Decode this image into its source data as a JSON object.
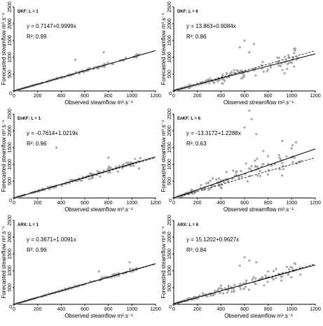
{
  "chart_data": [
    {
      "type": "scatter",
      "title": "DKF: L = 1",
      "xlabel": "Observed steamflow m³.s⁻¹",
      "ylabel": "Forecasted steamflow m³.s⁻¹",
      "xlim": [
        0,
        1200
      ],
      "ylim": [
        0,
        2500
      ],
      "xticks": [
        0,
        200,
        400,
        600,
        800,
        1000,
        1200
      ],
      "yticks": [
        0,
        500,
        1000,
        1500,
        2000,
        2500
      ],
      "equation": "y = 0.7147+0.9999x",
      "r2": "R²: 0.99",
      "fit": {
        "intercept": 0.7147,
        "slope": 0.9999
      },
      "spread": 0.06,
      "outliers": [
        [
          520,
          930
        ],
        [
          760,
          1150
        ]
      ]
    },
    {
      "type": "scatter",
      "title": "DKF: L = 6",
      "xlabel": "Observed streamflow m³.s⁻¹",
      "ylabel": "Forecasted steamflow m³.s⁻¹",
      "xlim": [
        0,
        1200
      ],
      "ylim": [
        0,
        2500
      ],
      "xticks": [
        0,
        200,
        400,
        600,
        800,
        1000,
        1200
      ],
      "yticks": [
        0,
        500,
        1000,
        1500,
        2000,
        2500
      ],
      "equation": "y = 13.863+0.9084x",
      "r2": "R²: 0.86",
      "fit": {
        "intercept": 13.863,
        "slope": 0.9084
      },
      "spread": 0.32,
      "outliers": [
        [
          600,
          1500
        ],
        [
          680,
          1400
        ],
        [
          560,
          1300
        ],
        [
          1020,
          1250
        ],
        [
          640,
          1150
        ]
      ]
    },
    {
      "type": "scatter",
      "title": "EnKF: L = 1",
      "xlabel": "Observed steamflow m³.s⁻¹",
      "ylabel": "Forecasted steamflow m³.s⁻¹",
      "xlim": [
        0,
        1200
      ],
      "ylim": [
        0,
        2500
      ],
      "xticks": [
        0,
        200,
        400,
        600,
        800,
        1000,
        1200
      ],
      "yticks": [
        0,
        500,
        1000,
        1500,
        2000,
        2500
      ],
      "equation": "y = -0.7614+1.0219x",
      "r2": "R²: 0.96",
      "fit": {
        "intercept": -0.7614,
        "slope": 1.0219
      },
      "spread": 0.12,
      "outliers": [
        [
          360,
          1500
        ],
        [
          800,
          1200
        ],
        [
          1060,
          880
        ]
      ]
    },
    {
      "type": "scatter",
      "title": "EnKF: L = 6",
      "xlabel": "Observed streamflow m³.s⁻¹",
      "ylabel": "Forecasted steamflow m³.s⁻¹",
      "xlim": [
        0,
        1200
      ],
      "ylim": [
        0,
        2500
      ],
      "xticks": [
        0,
        200,
        400,
        600,
        800,
        1000,
        1200
      ],
      "yticks": [
        0,
        500,
        1000,
        1500,
        2000,
        2500
      ],
      "equation": "y = -13.3172+1.2288x",
      "r2": "R²: 0.63",
      "fit": {
        "intercept": -13.3172,
        "slope": 1.2288
      },
      "spread": 0.45,
      "outliers": [
        [
          640,
          2600
        ],
        [
          660,
          2350
        ],
        [
          600,
          2100
        ],
        [
          760,
          1400
        ],
        [
          920,
          1700
        ],
        [
          1080,
          1100
        ],
        [
          700,
          1900
        ]
      ]
    },
    {
      "type": "scatter",
      "title": "ARX: L = 1",
      "xlabel": "Observed steamflow m³.s⁻¹",
      "ylabel": "Forecasted steamflow m³.s⁻¹",
      "xlim": [
        0,
        1200
      ],
      "ylim": [
        0,
        2500
      ],
      "xticks": [
        0,
        200,
        400,
        600,
        800,
        1000,
        1200
      ],
      "yticks": [
        0,
        500,
        1000,
        1500,
        2000,
        2500
      ],
      "equation": "y = 0.3671+1.0091x",
      "r2": "R²: 0.99",
      "fit": {
        "intercept": 0.3671,
        "slope": 1.0091
      },
      "spread": 0.06,
      "outliers": [
        [
          720,
          980
        ],
        [
          980,
          1250
        ]
      ]
    },
    {
      "type": "scatter",
      "title": "ARX: L = 6",
      "xlabel": "Observed steamflow m³.s⁻¹",
      "ylabel": "Forecasted steamflow m³.s⁻¹",
      "xlim": [
        0,
        1200
      ],
      "ylim": [
        0,
        2500
      ],
      "xticks": [
        0,
        200,
        400,
        600,
        800,
        1000,
        1200
      ],
      "yticks": [
        0,
        500,
        1000,
        1500,
        2000,
        2500
      ],
      "equation": "y = 15.1202+0.9627x",
      "r2": "R²: 0.84",
      "fit": {
        "intercept": 15.1202,
        "slope": 0.9627
      },
      "spread": 0.3,
      "outliers": [
        [
          600,
          1400
        ],
        [
          640,
          1300
        ],
        [
          700,
          1250
        ],
        [
          1020,
          1000
        ],
        [
          560,
          1150
        ]
      ]
    }
  ],
  "colors": {
    "points": "#a6a6a6",
    "axis": "#000000",
    "fit_line": "#000000"
  }
}
